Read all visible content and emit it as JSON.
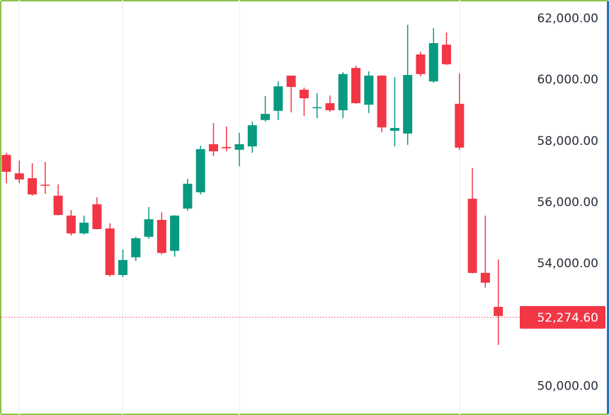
{
  "chart_data": {
    "type": "candlestick",
    "title": "",
    "xlabel": "",
    "ylabel": "",
    "ylim": [
      49500,
      62300
    ],
    "y_ticks": [
      "62,000.00",
      "60,000.00",
      "58,000.00",
      "56,000.00",
      "54,000.00",
      "50,000.00"
    ],
    "y_tick_values": [
      62000,
      60000,
      58000,
      56000,
      54000,
      50000
    ],
    "grid": "vertical lines only",
    "last_price": 52274.6,
    "last_price_label": "52,274.60",
    "colors": {
      "up": "#089981",
      "down": "#f23645",
      "grid": "#f0f3fa",
      "frame_left": "#8bc34a",
      "frame_right": "#1e73be"
    },
    "candles": [
      {
        "o": 57530,
        "h": 57600,
        "l": 56610,
        "c": 56980
      },
      {
        "o": 56930,
        "h": 57350,
        "l": 56610,
        "c": 56730
      },
      {
        "o": 56770,
        "h": 57260,
        "l": 56200,
        "c": 56240
      },
      {
        "o": 56560,
        "h": 57300,
        "l": 56260,
        "c": 56530
      },
      {
        "o": 56200,
        "h": 56570,
        "l": 55560,
        "c": 55570
      },
      {
        "o": 55550,
        "h": 55730,
        "l": 54900,
        "c": 54970
      },
      {
        "o": 54970,
        "h": 55550,
        "l": 54930,
        "c": 55320
      },
      {
        "o": 55920,
        "h": 56150,
        "l": 55100,
        "c": 55110
      },
      {
        "o": 55130,
        "h": 55300,
        "l": 53560,
        "c": 53610
      },
      {
        "o": 53610,
        "h": 54440,
        "l": 53540,
        "c": 54100
      },
      {
        "o": 54190,
        "h": 54860,
        "l": 54070,
        "c": 54810
      },
      {
        "o": 54860,
        "h": 55830,
        "l": 54790,
        "c": 55430
      },
      {
        "o": 55410,
        "h": 55660,
        "l": 54280,
        "c": 54330
      },
      {
        "o": 54400,
        "h": 55560,
        "l": 54210,
        "c": 55550
      },
      {
        "o": 55780,
        "h": 56750,
        "l": 55710,
        "c": 56590
      },
      {
        "o": 56310,
        "h": 57830,
        "l": 56240,
        "c": 57720
      },
      {
        "o": 57880,
        "h": 58570,
        "l": 57490,
        "c": 57650
      },
      {
        "o": 57790,
        "h": 58460,
        "l": 57650,
        "c": 57750
      },
      {
        "o": 57700,
        "h": 58250,
        "l": 57160,
        "c": 57880
      },
      {
        "o": 57810,
        "h": 58620,
        "l": 57600,
        "c": 58500
      },
      {
        "o": 58670,
        "h": 59450,
        "l": 58620,
        "c": 58870
      },
      {
        "o": 58970,
        "h": 59930,
        "l": 58670,
        "c": 59770
      },
      {
        "o": 60120,
        "h": 60120,
        "l": 58920,
        "c": 59750
      },
      {
        "o": 59660,
        "h": 59730,
        "l": 58800,
        "c": 59380
      },
      {
        "o": 59060,
        "h": 59540,
        "l": 58730,
        "c": 59090
      },
      {
        "o": 59220,
        "h": 59470,
        "l": 58940,
        "c": 58990
      },
      {
        "o": 58990,
        "h": 60230,
        "l": 58730,
        "c": 60170
      },
      {
        "o": 60370,
        "h": 60440,
        "l": 59200,
        "c": 59220
      },
      {
        "o": 59170,
        "h": 60260,
        "l": 58900,
        "c": 60120
      },
      {
        "o": 60120,
        "h": 60130,
        "l": 58270,
        "c": 58430
      },
      {
        "o": 58320,
        "h": 60070,
        "l": 57810,
        "c": 58410
      },
      {
        "o": 58230,
        "h": 61780,
        "l": 57860,
        "c": 60140
      },
      {
        "o": 60810,
        "h": 60900,
        "l": 60100,
        "c": 60170
      },
      {
        "o": 59930,
        "h": 61670,
        "l": 59890,
        "c": 61180
      },
      {
        "o": 61130,
        "h": 61530,
        "l": 60470,
        "c": 60490
      },
      {
        "o": 59200,
        "h": 60190,
        "l": 57700,
        "c": 57770
      },
      {
        "o": 56100,
        "h": 57100,
        "l": 53660,
        "c": 53680
      },
      {
        "o": 53680,
        "h": 55550,
        "l": 53200,
        "c": 53360
      },
      {
        "o": 52570,
        "h": 54120,
        "l": 51330,
        "c": 52274.6
      }
    ]
  }
}
